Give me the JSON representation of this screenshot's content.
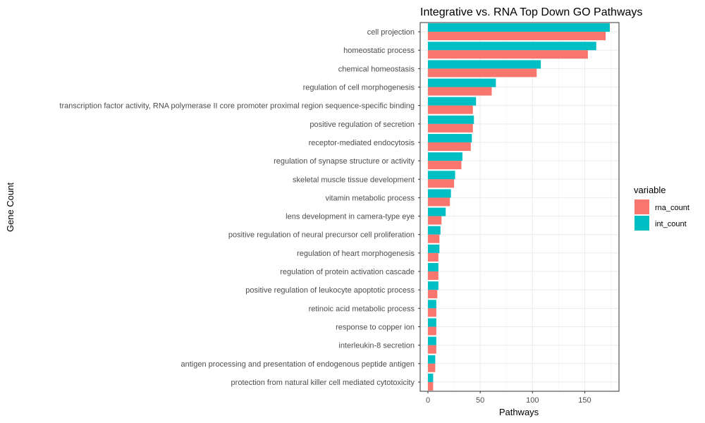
{
  "chart_data": {
    "type": "bar",
    "orientation": "horizontal",
    "title": "Integrative vs. RNA Top Down GO Pathways",
    "xlabel": "Pathways",
    "ylabel": "Gene Count",
    "xlim": [
      0,
      180
    ],
    "x_ticks": [
      0,
      50,
      100,
      150
    ],
    "x_tick_labels": [
      "0",
      "50",
      "100",
      "150"
    ],
    "grid": true,
    "legend": {
      "title": "variable",
      "position": "right"
    },
    "categories": [
      "cell projection",
      "homeostatic process",
      "chemical homeostasis",
      "regulation of cell morphogenesis",
      "transcription factor activity, RNA polymerase II core promoter proximal region sequence-specific binding",
      "positive regulation of secretion",
      "receptor-mediated endocytosis",
      "regulation of synapse structure or activity",
      "skeletal muscle tissue development",
      "vitamin metabolic process",
      "lens development in camera-type eye",
      "positive regulation of neural precursor cell proliferation",
      "regulation of heart morphogenesis",
      "regulation of protein activation cascade",
      "positive regulation of leukocyte apoptotic process",
      "retinoic acid metabolic process",
      "response to copper ion",
      "interleukin-8 secretion",
      "antigen processing and presentation of endogenous peptide antigen",
      "protection from natural killer cell mediated cytotoxicity"
    ],
    "series": [
      {
        "name": "rna_count",
        "color": "#F8766D",
        "values": [
          170,
          153,
          104,
          61,
          43,
          43,
          41,
          32,
          25,
          21,
          13,
          11,
          10,
          10,
          9,
          8,
          8,
          8,
          7,
          5
        ]
      },
      {
        "name": "int_count",
        "color": "#00BFC4",
        "values": [
          174,
          161,
          108,
          65,
          46,
          44,
          42,
          33,
          26,
          22,
          17,
          12,
          11,
          10,
          10,
          8,
          8,
          8,
          7,
          5
        ]
      }
    ]
  }
}
